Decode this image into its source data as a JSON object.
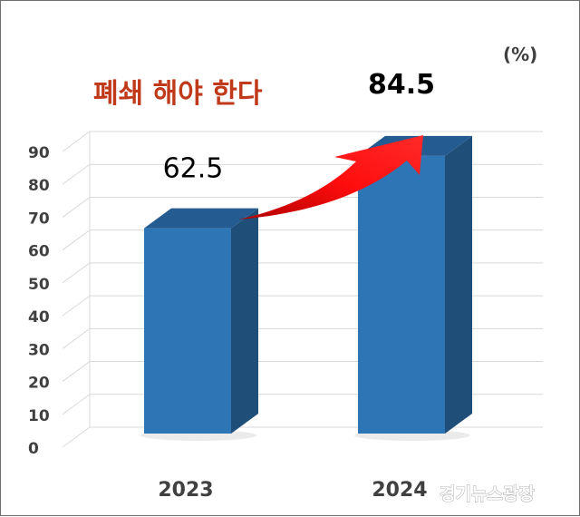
{
  "chart_data": {
    "type": "bar",
    "title": "폐쇄 해야 한다",
    "unit": "(%)",
    "categories": [
      "2023",
      "2024"
    ],
    "values": [
      62.5,
      84.5
    ],
    "data_labels": [
      "62.5",
      "84.5"
    ],
    "yticks": [
      "0",
      "10",
      "20",
      "30",
      "40",
      "50",
      "60",
      "70",
      "80",
      "90"
    ],
    "ylim": [
      0,
      90
    ],
    "grid": true,
    "style_3d": true,
    "annotation": "red arrow rising from the 2023 bar to the 2024 bar",
    "colors": {
      "bar_front": "#2e75b6",
      "bar_side": "#1f4e79",
      "bar_top": "#245c91",
      "title": "#c0391b",
      "arrow": "#ff1010"
    }
  },
  "watermark": "경기뉴스광장"
}
